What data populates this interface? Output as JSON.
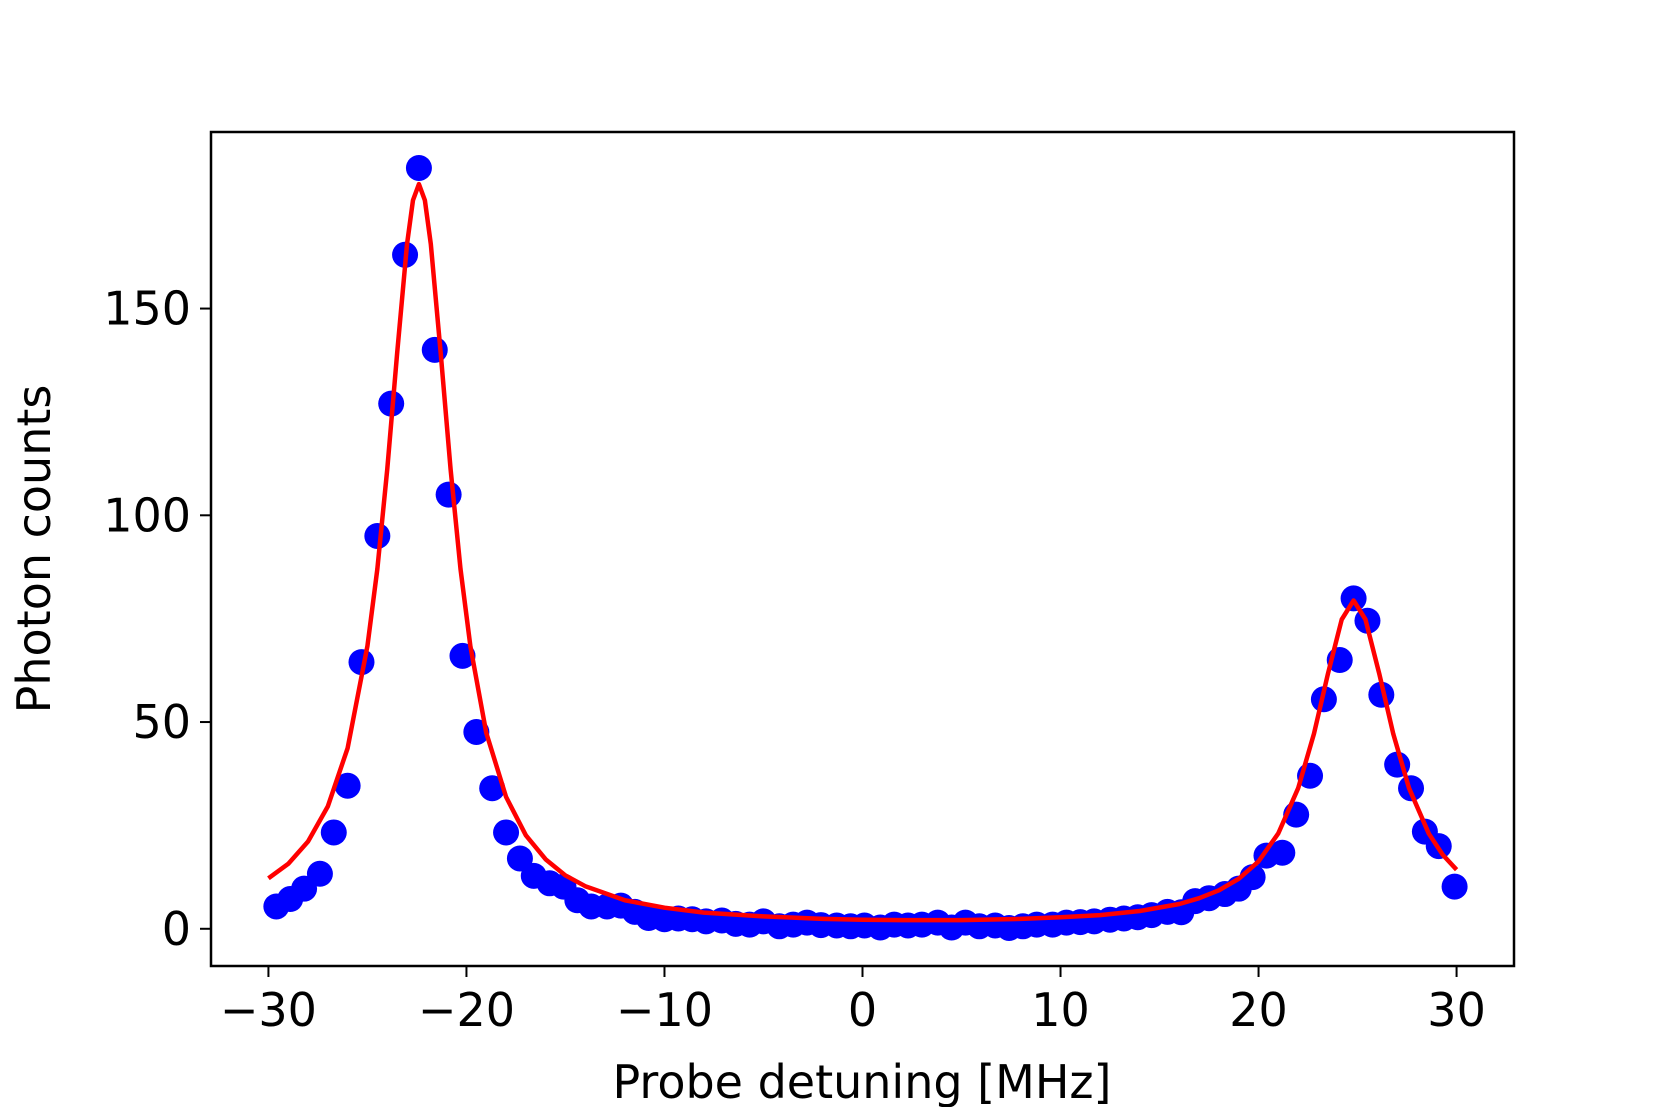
{
  "chart_data": {
    "type": "scatter",
    "xlabel": "Probe detuning [MHz]",
    "ylabel": "Photon counts",
    "xlim": [
      -32.9,
      32.9
    ],
    "ylim": [
      -9,
      192.7
    ],
    "xticks": [
      {
        "value": -30,
        "label": "−30"
      },
      {
        "value": -20,
        "label": "−20"
      },
      {
        "value": -10,
        "label": "−10"
      },
      0,
      10,
      20,
      30
    ],
    "yticks": [
      0,
      50,
      100,
      150
    ],
    "grid": false,
    "series": [
      {
        "type": "scatter",
        "color": "#0000ff",
        "x": [
          -29.6,
          -28.9,
          -28.2,
          -27.4,
          -26.7,
          -26.0,
          -25.3,
          -24.5,
          -23.8,
          -23.1,
          -22.4,
          -21.6,
          -20.9,
          -20.2,
          -19.5,
          -18.7,
          -18.0,
          -17.3,
          -16.6,
          -15.8,
          -15.1,
          -14.4,
          -13.7,
          -12.9,
          -12.2,
          -11.5,
          -10.8,
          -10.0,
          -9.3,
          -8.6,
          -7.9,
          -7.1,
          -6.4,
          -5.7,
          -5.0,
          -4.2,
          -3.5,
          -2.8,
          -2.1,
          -1.3,
          -0.6,
          0.1,
          0.9,
          1.6,
          2.3,
          3.0,
          3.8,
          4.5,
          5.2,
          5.9,
          6.7,
          7.4,
          8.1,
          8.8,
          9.6,
          10.3,
          11.0,
          11.7,
          12.5,
          13.2,
          13.9,
          14.6,
          15.4,
          16.1,
          16.8,
          17.5,
          18.3,
          19.0,
          19.7,
          20.4,
          21.2,
          21.9,
          22.6,
          23.3,
          24.1,
          24.8,
          25.5,
          26.2,
          27.0,
          27.7,
          28.4,
          29.1,
          29.9
        ],
        "values": [
          5.4,
          7.2,
          9.7,
          13.3,
          23.3,
          34.6,
          64.5,
          95,
          127,
          163,
          184,
          140,
          105,
          66,
          47.6,
          34,
          23.3,
          17,
          12.8,
          11,
          10.2,
          6.9,
          5.4,
          5.4,
          5.6,
          4.1,
          2.6,
          2.3,
          2.5,
          2.3,
          1.8,
          2,
          1.2,
          1,
          1.8,
          0.6,
          1,
          1.5,
          0.9,
          0.8,
          0.6,
          0.8,
          0.3,
          1,
          0.8,
          1,
          1.5,
          0.3,
          1.5,
          0.6,
          0.8,
          0.2,
          0.6,
          1,
          1,
          1.5,
          1.6,
          1.8,
          2.2,
          2.5,
          2.8,
          3.3,
          4.1,
          4,
          6.7,
          7.4,
          8.4,
          9.7,
          12.5,
          17.7,
          18.4,
          27.6,
          37,
          55.5,
          65,
          79.9,
          74.5,
          56.6,
          39.7,
          34,
          23.5,
          20,
          10.2
        ]
      },
      {
        "type": "line",
        "color": "#ff0000",
        "x": [
          -30,
          -29,
          -28,
          -27,
          -26,
          -25,
          -24.5,
          -24,
          -23.5,
          -23,
          -22.7,
          -22.4,
          -22.1,
          -21.8,
          -21.3,
          -20.8,
          -20.3,
          -19.8,
          -19,
          -18,
          -17,
          -16,
          -15,
          -14,
          -12,
          -10,
          -8,
          -5,
          -2,
          0,
          2,
          5,
          8,
          10,
          12,
          14,
          16,
          17,
          18,
          19,
          20,
          21,
          22,
          22.8,
          23.5,
          24.2,
          24.8,
          25.4,
          26.1,
          26.8,
          27.6,
          28.6,
          29.3,
          30
        ],
        "values": [
          12.2,
          15.7,
          21.1,
          29.6,
          43.7,
          68.4,
          87.0,
          111.1,
          139.2,
          165.6,
          176.2,
          180.1,
          176.2,
          165.6,
          139.2,
          111.1,
          87.0,
          68.3,
          47.4,
          31.9,
          22.6,
          16.8,
          12.9,
          10.3,
          6.9,
          5.1,
          3.9,
          3.0,
          2.4,
          2.2,
          2.1,
          2.1,
          2.4,
          2.8,
          3.3,
          4.3,
          6.0,
          7.4,
          9.3,
          12.1,
          16.3,
          23.1,
          34.0,
          47.2,
          61.6,
          74.8,
          79.4,
          74.8,
          61.6,
          47.2,
          34.0,
          23.0,
          17.9,
          14.3
        ]
      }
    ]
  }
}
